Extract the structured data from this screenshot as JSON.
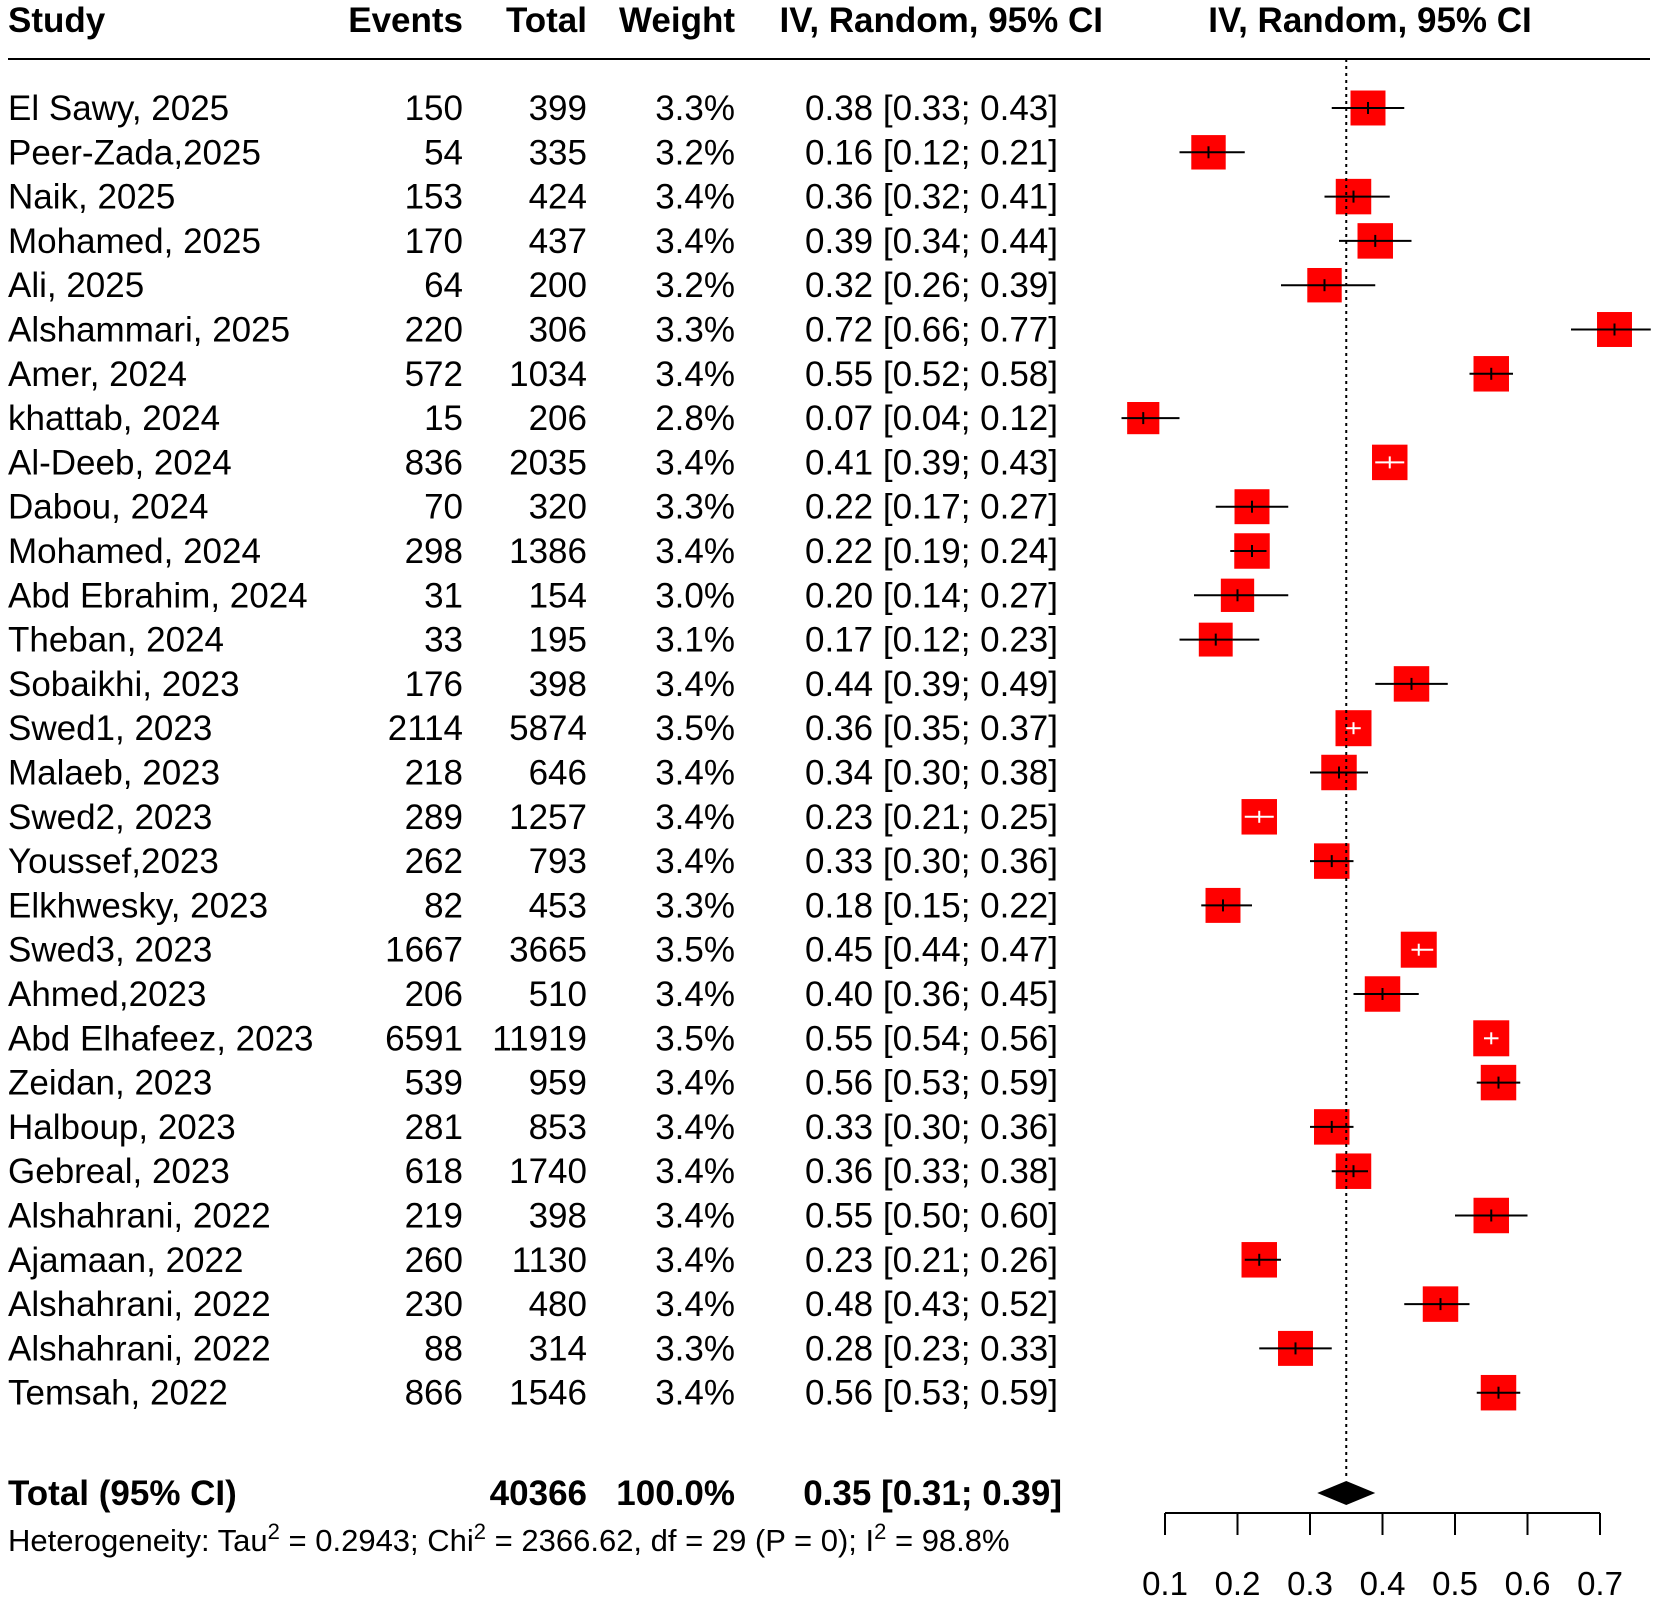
{
  "chart_data": {
    "type": "forest",
    "headers": {
      "study": "Study",
      "events": "Events",
      "total": "Total",
      "weight": "Weight",
      "ci_text": "IV, Random, 95% CI",
      "ci_plot": "IV, Random, 95% CI"
    },
    "studies": [
      {
        "study": "El Sawy, 2025",
        "events": "150",
        "total": "399",
        "weight": "3.3%",
        "ci": "0.38 [0.33; 0.43]",
        "est": 0.38,
        "lo": 0.33,
        "hi": 0.43,
        "w": 3.3
      },
      {
        "study": "Peer-Zada,2025",
        "events": "54",
        "total": "335",
        "weight": "3.2%",
        "ci": "0.16 [0.12; 0.21]",
        "est": 0.16,
        "lo": 0.12,
        "hi": 0.21,
        "w": 3.2
      },
      {
        "study": "Naik, 2025",
        "events": "153",
        "total": "424",
        "weight": "3.4%",
        "ci": "0.36 [0.32; 0.41]",
        "est": 0.36,
        "lo": 0.32,
        "hi": 0.41,
        "w": 3.4
      },
      {
        "study": "Mohamed, 2025",
        "events": "170",
        "total": "437",
        "weight": "3.4%",
        "ci": "0.39 [0.34; 0.44]",
        "est": 0.39,
        "lo": 0.34,
        "hi": 0.44,
        "w": 3.4
      },
      {
        "study": "Ali, 2025",
        "events": "64",
        "total": "200",
        "weight": "3.2%",
        "ci": "0.32 [0.26; 0.39]",
        "est": 0.32,
        "lo": 0.26,
        "hi": 0.39,
        "w": 3.2
      },
      {
        "study": "Alshammari, 2025",
        "events": "220",
        "total": "306",
        "weight": "3.3%",
        "ci": "0.72 [0.66; 0.77]",
        "est": 0.72,
        "lo": 0.66,
        "hi": 0.77,
        "w": 3.3
      },
      {
        "study": "Amer, 2024",
        "events": "572",
        "total": "1034",
        "weight": "3.4%",
        "ci": "0.55 [0.52; 0.58]",
        "est": 0.55,
        "lo": 0.52,
        "hi": 0.58,
        "w": 3.4
      },
      {
        "study": "khattab, 2024",
        "events": "15",
        "total": "206",
        "weight": "2.8%",
        "ci": "0.07 [0.04; 0.12]",
        "est": 0.07,
        "lo": 0.04,
        "hi": 0.12,
        "w": 2.8
      },
      {
        "study": "Al-Deeb, 2024",
        "events": "836",
        "total": "2035",
        "weight": "3.4%",
        "ci": "0.41 [0.39; 0.43]",
        "est": 0.41,
        "lo": 0.39,
        "hi": 0.43,
        "w": 3.4
      },
      {
        "study": "Dabou, 2024",
        "events": "70",
        "total": "320",
        "weight": "3.3%",
        "ci": "0.22 [0.17; 0.27]",
        "est": 0.22,
        "lo": 0.17,
        "hi": 0.27,
        "w": 3.3
      },
      {
        "study": "Mohamed, 2024",
        "events": "298",
        "total": "1386",
        "weight": "3.4%",
        "ci": "0.22 [0.19; 0.24]",
        "est": 0.22,
        "lo": 0.19,
        "hi": 0.24,
        "w": 3.4
      },
      {
        "study": "Abd Ebrahim, 2024",
        "events": "31",
        "total": "154",
        "weight": "3.0%",
        "ci": "0.20 [0.14; 0.27]",
        "est": 0.2,
        "lo": 0.14,
        "hi": 0.27,
        "w": 3.0
      },
      {
        "study": "Theban, 2024",
        "events": "33",
        "total": "195",
        "weight": "3.1%",
        "ci": "0.17 [0.12; 0.23]",
        "est": 0.17,
        "lo": 0.12,
        "hi": 0.23,
        "w": 3.1
      },
      {
        "study": "Sobaikhi, 2023",
        "events": "176",
        "total": "398",
        "weight": "3.4%",
        "ci": "0.44 [0.39; 0.49]",
        "est": 0.44,
        "lo": 0.39,
        "hi": 0.49,
        "w": 3.4
      },
      {
        "study": "Swed1, 2023",
        "events": "2114",
        "total": "5874",
        "weight": "3.5%",
        "ci": "0.36 [0.35; 0.37]",
        "est": 0.36,
        "lo": 0.35,
        "hi": 0.37,
        "w": 3.5
      },
      {
        "study": "Malaeb, 2023",
        "events": "218",
        "total": "646",
        "weight": "3.4%",
        "ci": "0.34 [0.30; 0.38]",
        "est": 0.34,
        "lo": 0.3,
        "hi": 0.38,
        "w": 3.4
      },
      {
        "study": "Swed2, 2023",
        "events": "289",
        "total": "1257",
        "weight": "3.4%",
        "ci": "0.23 [0.21; 0.25]",
        "est": 0.23,
        "lo": 0.21,
        "hi": 0.25,
        "w": 3.4
      },
      {
        "study": "Youssef,2023",
        "events": "262",
        "total": "793",
        "weight": "3.4%",
        "ci": "0.33 [0.30; 0.36]",
        "est": 0.33,
        "lo": 0.3,
        "hi": 0.36,
        "w": 3.4
      },
      {
        "study": "Elkhwesky, 2023",
        "events": "82",
        "total": "453",
        "weight": "3.3%",
        "ci": "0.18 [0.15; 0.22]",
        "est": 0.18,
        "lo": 0.15,
        "hi": 0.22,
        "w": 3.3
      },
      {
        "study": "Swed3, 2023",
        "events": "1667",
        "total": "3665",
        "weight": "3.5%",
        "ci": "0.45 [0.44; 0.47]",
        "est": 0.45,
        "lo": 0.44,
        "hi": 0.47,
        "w": 3.5
      },
      {
        "study": "Ahmed,2023",
        "events": "206",
        "total": "510",
        "weight": "3.4%",
        "ci": "0.40 [0.36; 0.45]",
        "est": 0.4,
        "lo": 0.36,
        "hi": 0.45,
        "w": 3.4
      },
      {
        "study": "Abd Elhafeez, 2023",
        "events": "6591",
        "total": "11919",
        "weight": "3.5%",
        "ci": "0.55 [0.54; 0.56]",
        "est": 0.55,
        "lo": 0.54,
        "hi": 0.56,
        "w": 3.5
      },
      {
        "study": "Zeidan, 2023",
        "events": "539",
        "total": "959",
        "weight": "3.4%",
        "ci": "0.56 [0.53; 0.59]",
        "est": 0.56,
        "lo": 0.53,
        "hi": 0.59,
        "w": 3.4
      },
      {
        "study": "Halboup, 2023",
        "events": "281",
        "total": "853",
        "weight": "3.4%",
        "ci": "0.33 [0.30; 0.36]",
        "est": 0.33,
        "lo": 0.3,
        "hi": 0.36,
        "w": 3.4
      },
      {
        "study": "Gebreal, 2023",
        "events": "618",
        "total": "1740",
        "weight": "3.4%",
        "ci": "0.36 [0.33; 0.38]",
        "est": 0.36,
        "lo": 0.33,
        "hi": 0.38,
        "w": 3.4
      },
      {
        "study": "Alshahrani, 2022",
        "events": "219",
        "total": "398",
        "weight": "3.4%",
        "ci": "0.55 [0.50; 0.60]",
        "est": 0.55,
        "lo": 0.5,
        "hi": 0.6,
        "w": 3.4
      },
      {
        "study": "Ajamaan, 2022",
        "events": "260",
        "total": "1130",
        "weight": "3.4%",
        "ci": "0.23 [0.21; 0.26]",
        "est": 0.23,
        "lo": 0.21,
        "hi": 0.26,
        "w": 3.4
      },
      {
        "study": "Alshahrani, 2022",
        "events": "230",
        "total": "480",
        "weight": "3.4%",
        "ci": "0.48 [0.43; 0.52]",
        "est": 0.48,
        "lo": 0.43,
        "hi": 0.52,
        "w": 3.4
      },
      {
        "study": "Alshahrani, 2022",
        "events": "88",
        "total": "314",
        "weight": "3.3%",
        "ci": "0.28 [0.23; 0.33]",
        "est": 0.28,
        "lo": 0.23,
        "hi": 0.33,
        "w": 3.3
      },
      {
        "study": "Temsah, 2022",
        "events": "866",
        "total": "1546",
        "weight": "3.4%",
        "ci": "0.56 [0.53; 0.59]",
        "est": 0.56,
        "lo": 0.53,
        "hi": 0.59,
        "w": 3.4
      }
    ],
    "pooled": {
      "label": "Total (95% CI)",
      "total": "40366",
      "weight": "100.0%",
      "ci": "0.35 [0.31; 0.39]",
      "est": 0.35,
      "lo": 0.31,
      "hi": 0.39
    },
    "heterogeneity": {
      "prefix": "Heterogeneity: Tau",
      "sup1": "2",
      "mid": " = 0.2943; Chi",
      "sup2": "2",
      "mid2": " = 2366.62, df = 29 (P = 0); I",
      "sup3": "2",
      "end": " = 98.8%"
    },
    "x_axis": {
      "ticks": [
        0.1,
        0.2,
        0.3,
        0.4,
        0.5,
        0.6,
        0.7
      ],
      "tick_labels": [
        "0.1",
        "0.2",
        "0.3",
        "0.4",
        "0.5",
        "0.6",
        "0.7"
      ],
      "xlim": [
        0.1,
        0.7
      ],
      "reference_line": 0.35
    },
    "colors": {
      "square": "#ff0000",
      "diamond": "#000000",
      "ci_line": "#000000",
      "ci_line_inside": "#ffffff"
    }
  }
}
